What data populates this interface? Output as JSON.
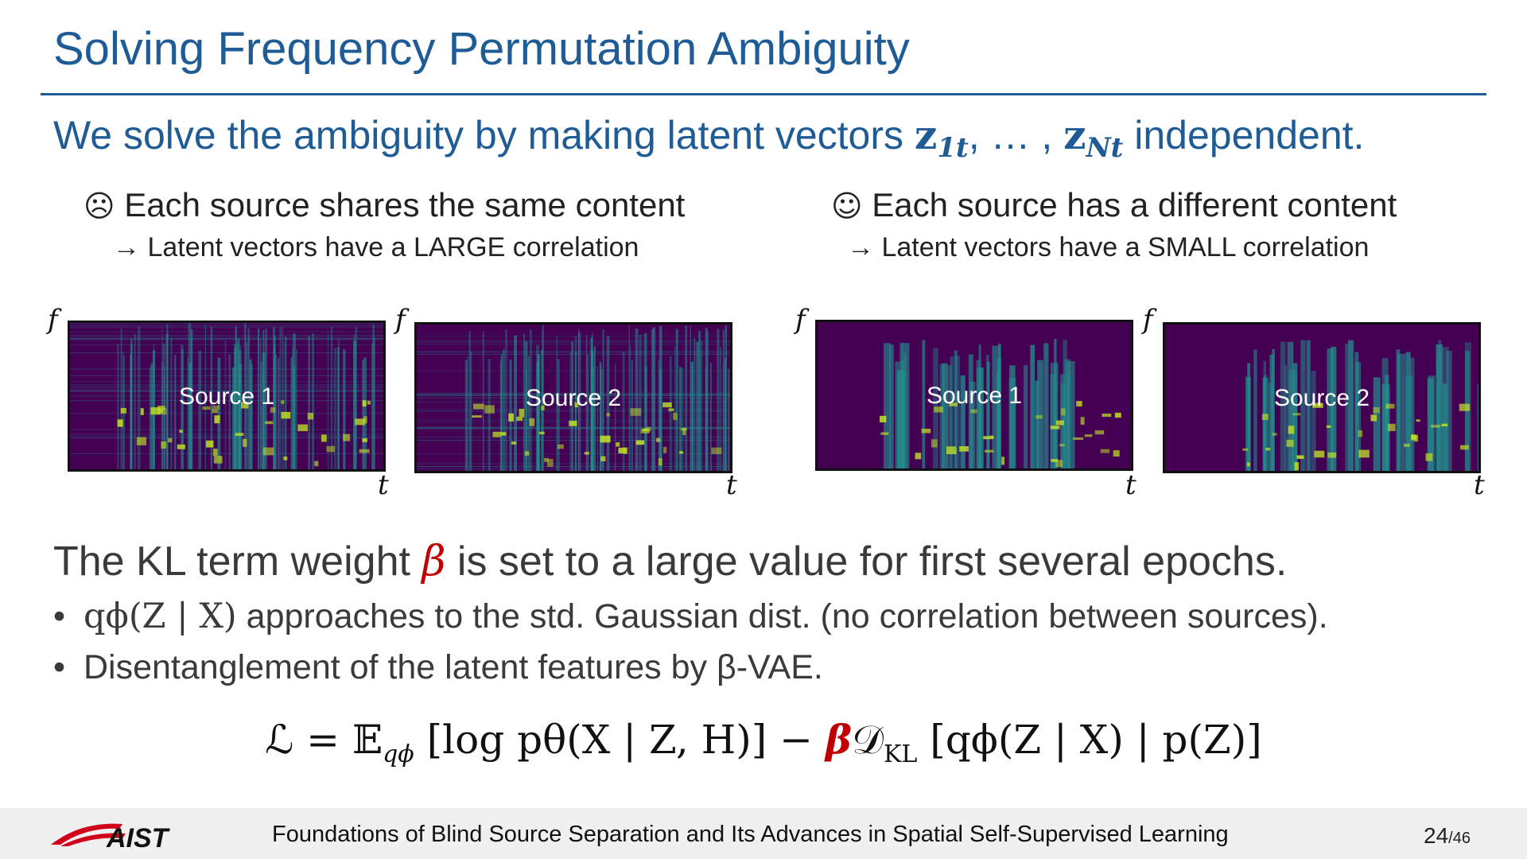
{
  "title": "Solving Frequency Permutation Ambiguity",
  "lead": {
    "before": "We solve the ambiguity by making latent vectors ",
    "z": "z",
    "sub1": "1t",
    "mid": ", … , ",
    "sub2": "Nt",
    "after": " independent."
  },
  "left_column": {
    "face": "☹",
    "heading": "Each source shares the same content",
    "arrow": "→",
    "sub": "Latent vectors have a LARGE correlation"
  },
  "right_column": {
    "face": "☺",
    "heading": "Each source has a different content",
    "arrow": "→",
    "sub": "Latent vectors have a SMALL correlation"
  },
  "axis": {
    "f": "f",
    "t": "t"
  },
  "spectrograms": [
    {
      "label": "Source 1",
      "group": "same-content"
    },
    {
      "label": "Source 2",
      "group": "same-content"
    },
    {
      "label": "Source 1",
      "group": "different-content"
    },
    {
      "label": "Source 2",
      "group": "different-content"
    }
  ],
  "kl_line": {
    "before": "The KL term weight ",
    "beta": "β",
    "after": " is set to a large value for first several epochs."
  },
  "bullets": [
    {
      "dot": "•",
      "math": "qϕ(Z | X)",
      "text": " approaches to the std. Gaussian dist. (no correlation between sources)."
    },
    {
      "dot": "•",
      "text": "Disentanglement of the latent features by β-VAE."
    }
  ],
  "equation": {
    "lhs": "ℒ = 𝔼",
    "sub_q": "qϕ",
    "part1": " [log pθ(X | Z, H)] − ",
    "beta": "β",
    "part2": "𝒟",
    "sub_kl": "KL",
    "part3": " [qϕ(Z | X) | p(Z)]"
  },
  "footer": {
    "logo_text": "AIST",
    "text": "Foundations of Blind Source Separation and Its Advances in Spatial Self-Supervised Learning",
    "page": "24",
    "total": "/46"
  },
  "colors": {
    "title": "#1f5c96",
    "accent_red": "#c00000",
    "body_text": "#3a3a3a",
    "footer_bg": "#f0f0f0",
    "spectrogram_low": "#440154",
    "spectrogram_mid": "#21918c",
    "spectrogram_high": "#bddf26"
  }
}
